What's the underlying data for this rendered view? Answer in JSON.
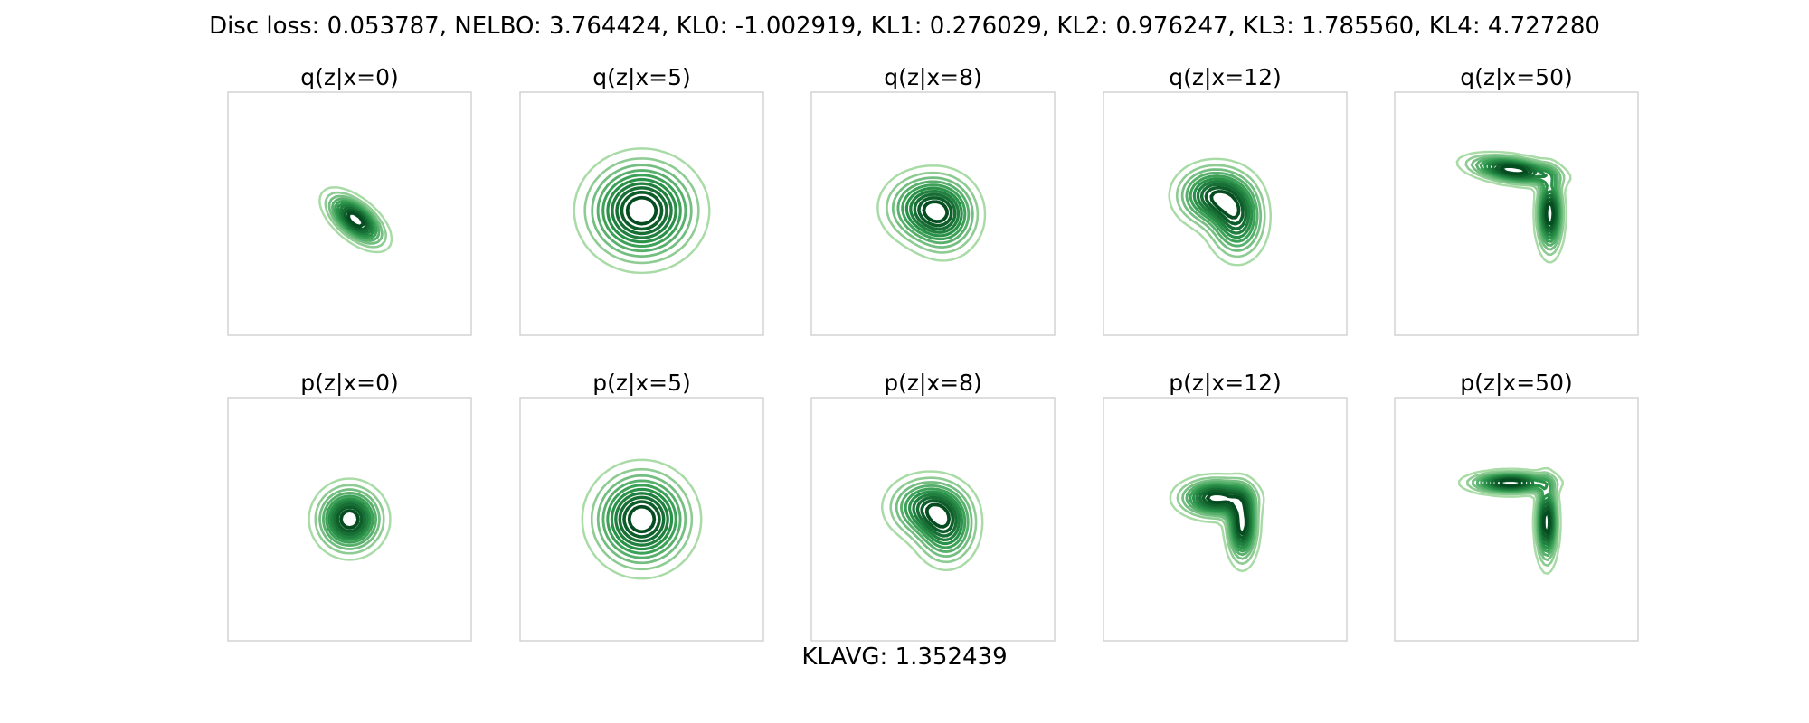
{
  "figure": {
    "suptitle": "Disc loss: 0.053787, NELBO: 3.764424, KL0: -1.002919, KL1: 0.276029, KL2: 0.976247, KL3: 1.785560, KL4: 4.727280",
    "footer": "KLAVG: 1.352439"
  },
  "colors": {
    "palette": "Greens",
    "darkest": "#00441b",
    "mid": "#2f9a4e",
    "light": "#b7e2b1",
    "frame": "#cfcfcf"
  },
  "chart_data": [
    {
      "type": "contour",
      "title": "q(z|x=0)",
      "row": 0,
      "col": 0,
      "axes_visible": false,
      "grid": false,
      "levels": 10,
      "components": [
        {
          "cx": 0.1,
          "cy": -0.1,
          "sx": 0.32,
          "sy": 0.16,
          "rot": -40,
          "w": 1.0
        }
      ]
    },
    {
      "type": "contour",
      "title": "q(z|x=5)",
      "row": 0,
      "col": 1,
      "axes_visible": false,
      "grid": false,
      "levels": 10,
      "components": [
        {
          "cx": 0.0,
          "cy": 0.05,
          "sx": 0.5,
          "sy": 0.46,
          "rot": 0,
          "w": 1.0
        }
      ]
    },
    {
      "type": "contour",
      "title": "q(z|x=8)",
      "row": 0,
      "col": 2,
      "axes_visible": false,
      "grid": false,
      "levels": 10,
      "components": [
        {
          "cx": -0.15,
          "cy": 0.1,
          "sx": 0.38,
          "sy": 0.32,
          "rot": 0,
          "w": 1.0
        },
        {
          "cx": 0.2,
          "cy": -0.05,
          "sx": 0.32,
          "sy": 0.36,
          "rot": 0,
          "w": 0.9
        }
      ]
    },
    {
      "type": "contour",
      "title": "q(z|x=12)",
      "row": 0,
      "col": 3,
      "axes_visible": false,
      "grid": false,
      "levels": 10,
      "components": [
        {
          "cx": -0.2,
          "cy": 0.3,
          "sx": 0.34,
          "sy": 0.28,
          "rot": 0,
          "w": 1.0
        },
        {
          "cx": 0.2,
          "cy": -0.1,
          "sx": 0.26,
          "sy": 0.36,
          "rot": 0,
          "w": 0.9
        }
      ]
    },
    {
      "type": "contour",
      "title": "q(z|x=50)",
      "row": 0,
      "col": 4,
      "axes_visible": false,
      "grid": false,
      "levels": 10,
      "components": [
        {
          "cx": -0.05,
          "cy": 0.72,
          "sx": 0.42,
          "sy": 0.12,
          "rot": -8,
          "w": 1.0
        },
        {
          "cx": 0.55,
          "cy": 0.0,
          "sx": 0.12,
          "sy": 0.36,
          "rot": 0,
          "w": 1.0
        }
      ]
    },
    {
      "type": "contour",
      "title": "p(z|x=0)",
      "row": 1,
      "col": 0,
      "axes_visible": false,
      "grid": false,
      "levels": 10,
      "components": [
        {
          "cx": 0.0,
          "cy": 0.0,
          "sx": 0.3,
          "sy": 0.3,
          "rot": 0,
          "w": 1.0
        }
      ]
    },
    {
      "type": "contour",
      "title": "p(z|x=5)",
      "row": 1,
      "col": 1,
      "axes_visible": false,
      "grid": false,
      "levels": 10,
      "components": [
        {
          "cx": 0.0,
          "cy": 0.0,
          "sx": 0.44,
          "sy": 0.44,
          "rot": 0,
          "w": 1.0
        }
      ]
    },
    {
      "type": "contour",
      "title": "p(z|x=8)",
      "row": 1,
      "col": 2,
      "axes_visible": false,
      "grid": false,
      "levels": 10,
      "components": [
        {
          "cx": -0.1,
          "cy": 0.2,
          "sx": 0.36,
          "sy": 0.28,
          "rot": 0,
          "w": 1.0
        },
        {
          "cx": 0.22,
          "cy": -0.15,
          "sx": 0.28,
          "sy": 0.34,
          "rot": 0,
          "w": 0.95
        }
      ]
    },
    {
      "type": "contour",
      "title": "p(z|x=12)",
      "row": 1,
      "col": 3,
      "axes_visible": false,
      "grid": false,
      "levels": 10,
      "components": [
        {
          "cx": -0.15,
          "cy": 0.35,
          "sx": 0.34,
          "sy": 0.18,
          "rot": 0,
          "w": 1.0
        },
        {
          "cx": 0.28,
          "cy": -0.1,
          "sx": 0.14,
          "sy": 0.34,
          "rot": 0,
          "w": 1.0
        }
      ]
    },
    {
      "type": "contour",
      "title": "p(z|x=50)",
      "row": 1,
      "col": 4,
      "axes_visible": false,
      "grid": false,
      "levels": 10,
      "components": [
        {
          "cx": -0.1,
          "cy": 0.6,
          "sx": 0.38,
          "sy": 0.1,
          "rot": 0,
          "w": 1.0
        },
        {
          "cx": 0.5,
          "cy": -0.05,
          "sx": 0.1,
          "sy": 0.38,
          "rot": 0,
          "w": 1.0
        }
      ]
    }
  ]
}
